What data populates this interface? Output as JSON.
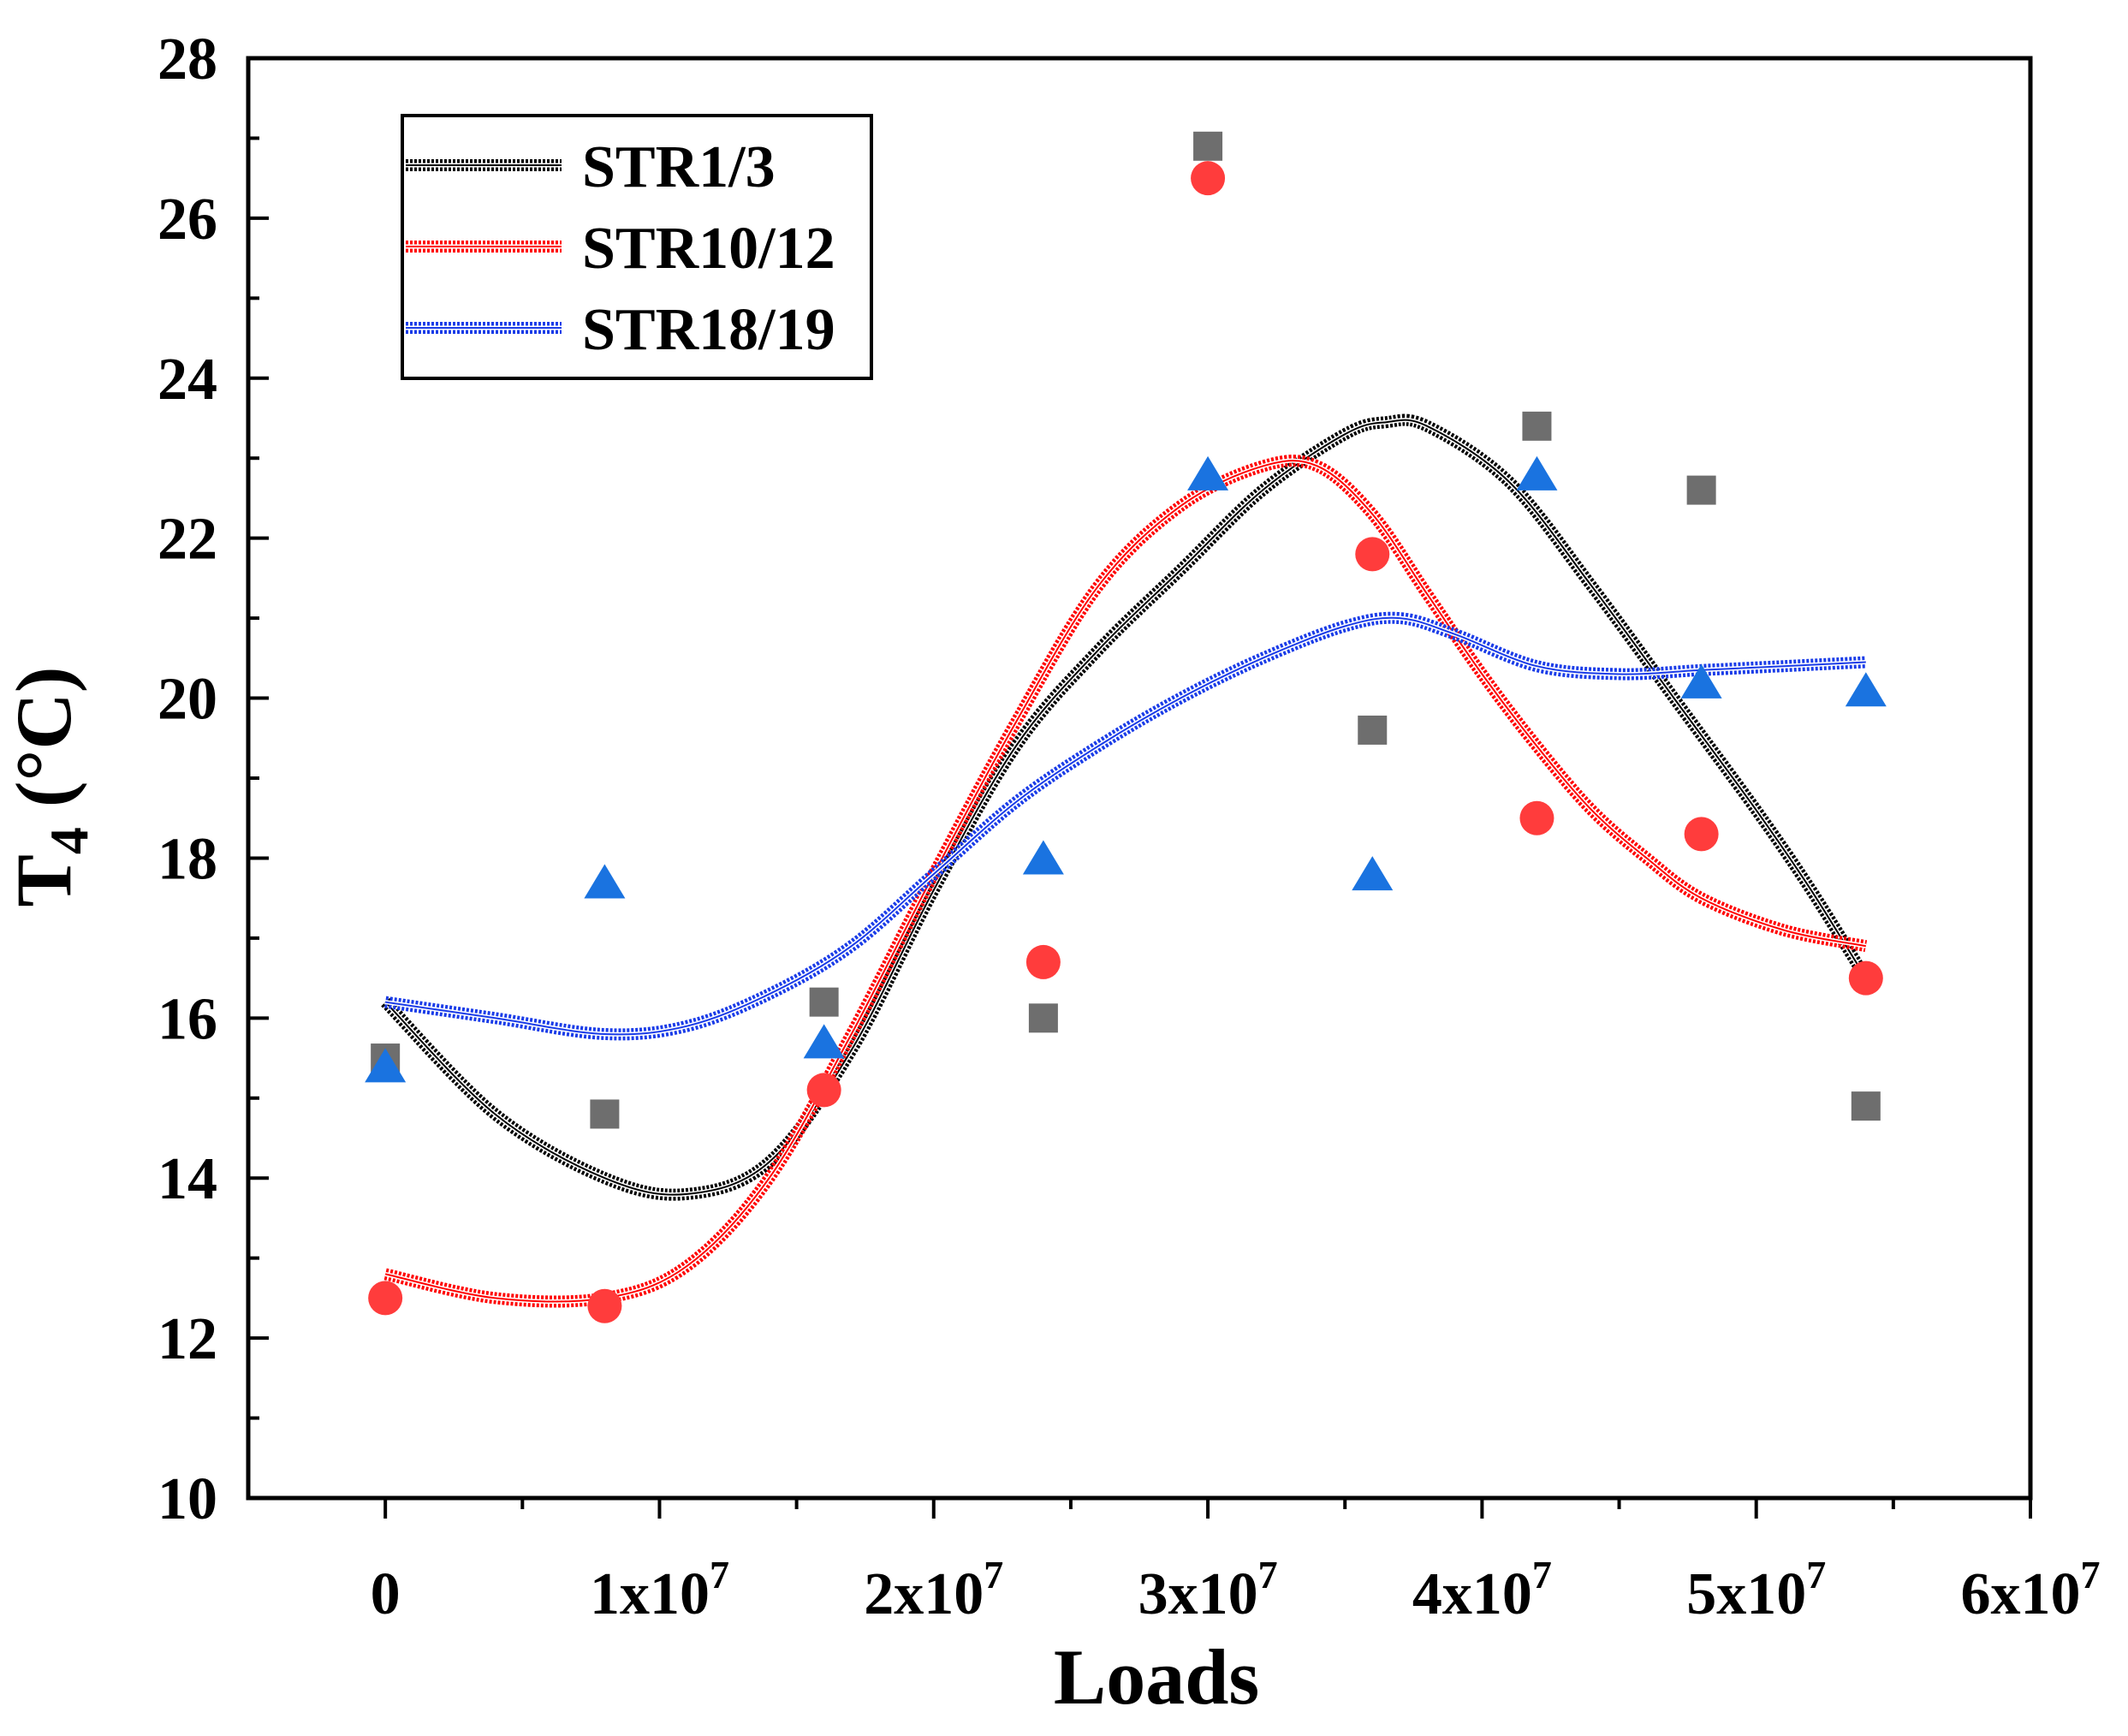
{
  "chart_data": {
    "type": "scatter",
    "xlabel": "Loads",
    "ylabel_main": "T",
    "ylabel_sub": "4",
    "ylabel_tail": " (°C)",
    "xlim": [
      -5000000,
      60000000
    ],
    "ylim": [
      10,
      28
    ],
    "x_ticks": [
      0,
      10000000,
      20000000,
      30000000,
      40000000,
      50000000,
      60000000
    ],
    "x_tick_labels": [
      {
        "base": "0",
        "exp": ""
      },
      {
        "base": "1x10",
        "exp": "7"
      },
      {
        "base": "2x10",
        "exp": "7"
      },
      {
        "base": "3x10",
        "exp": "7"
      },
      {
        "base": "4x10",
        "exp": "7"
      },
      {
        "base": "5x10",
        "exp": "7"
      },
      {
        "base": "6x10",
        "exp": "7"
      }
    ],
    "y_ticks": [
      10,
      12,
      14,
      16,
      18,
      20,
      22,
      24,
      26,
      28
    ],
    "y_tick_labels": [
      "10",
      "12",
      "14",
      "16",
      "18",
      "20",
      "22",
      "24",
      "26",
      "28"
    ],
    "x": [
      0,
      8000000,
      16000000,
      24000000,
      30000000,
      36000000,
      42000000,
      48000000,
      54000000
    ],
    "series": [
      {
        "name": "STR1/3",
        "marker": "square",
        "marker_color": "#6e6e6e",
        "line_color": "#000000",
        "values": [
          15.5,
          14.8,
          16.2,
          16.0,
          26.9,
          19.6,
          23.4,
          22.6,
          14.9
        ],
        "fit": [
          [
            0,
            16.2
          ],
          [
            4000000,
            14.8
          ],
          [
            8000000,
            14.0
          ],
          [
            11000000,
            13.8
          ],
          [
            14000000,
            14.2
          ],
          [
            17000000,
            15.6
          ],
          [
            20000000,
            17.6
          ],
          [
            23000000,
            19.4
          ],
          [
            26000000,
            20.6
          ],
          [
            29000000,
            21.6
          ],
          [
            32000000,
            22.6
          ],
          [
            35000000,
            23.3
          ],
          [
            36500000,
            23.45
          ],
          [
            38000000,
            23.4
          ],
          [
            41000000,
            22.7
          ],
          [
            44000000,
            21.4
          ],
          [
            47000000,
            20.0
          ],
          [
            50000000,
            18.6
          ],
          [
            52000000,
            17.6
          ],
          [
            54000000,
            16.5
          ]
        ]
      },
      {
        "name": "STR10/12",
        "marker": "circle",
        "marker_color": "#ff3c3c",
        "line_color": "#ff0000",
        "values": [
          12.5,
          12.4,
          15.1,
          16.7,
          26.5,
          21.8,
          18.5,
          18.3,
          16.5
        ],
        "fit": [
          [
            0,
            12.8
          ],
          [
            4000000,
            12.5
          ],
          [
            8000000,
            12.5
          ],
          [
            11000000,
            12.9
          ],
          [
            14000000,
            14.0
          ],
          [
            17000000,
            15.8
          ],
          [
            20000000,
            17.8
          ],
          [
            23000000,
            19.7
          ],
          [
            26000000,
            21.4
          ],
          [
            29000000,
            22.4
          ],
          [
            32000000,
            22.9
          ],
          [
            34000000,
            22.9
          ],
          [
            36000000,
            22.3
          ],
          [
            38000000,
            21.3
          ],
          [
            40000000,
            20.3
          ],
          [
            42000000,
            19.4
          ],
          [
            44000000,
            18.6
          ],
          [
            46000000,
            18.0
          ],
          [
            48000000,
            17.5
          ],
          [
            51000000,
            17.1
          ],
          [
            54000000,
            16.9
          ]
        ]
      },
      {
        "name": "STR18/19",
        "marker": "triangle",
        "marker_color": "#1a73e0",
        "line_color": "#1a3ce8",
        "values": [
          15.4,
          17.7,
          15.7,
          18.0,
          22.8,
          17.8,
          22.8,
          20.2,
          20.1
        ],
        "fit": [
          [
            0,
            16.2
          ],
          [
            4000000,
            16.0
          ],
          [
            8000000,
            15.8
          ],
          [
            11000000,
            15.9
          ],
          [
            14000000,
            16.3
          ],
          [
            17000000,
            16.9
          ],
          [
            20000000,
            17.8
          ],
          [
            23000000,
            18.7
          ],
          [
            26000000,
            19.4
          ],
          [
            29000000,
            20.0
          ],
          [
            32000000,
            20.5
          ],
          [
            35000000,
            20.9
          ],
          [
            37000000,
            21.0
          ],
          [
            39000000,
            20.8
          ],
          [
            42000000,
            20.4
          ],
          [
            45000000,
            20.3
          ],
          [
            48000000,
            20.35
          ],
          [
            51000000,
            20.4
          ],
          [
            54000000,
            20.45
          ]
        ]
      }
    ],
    "legend_position": "top-left"
  }
}
